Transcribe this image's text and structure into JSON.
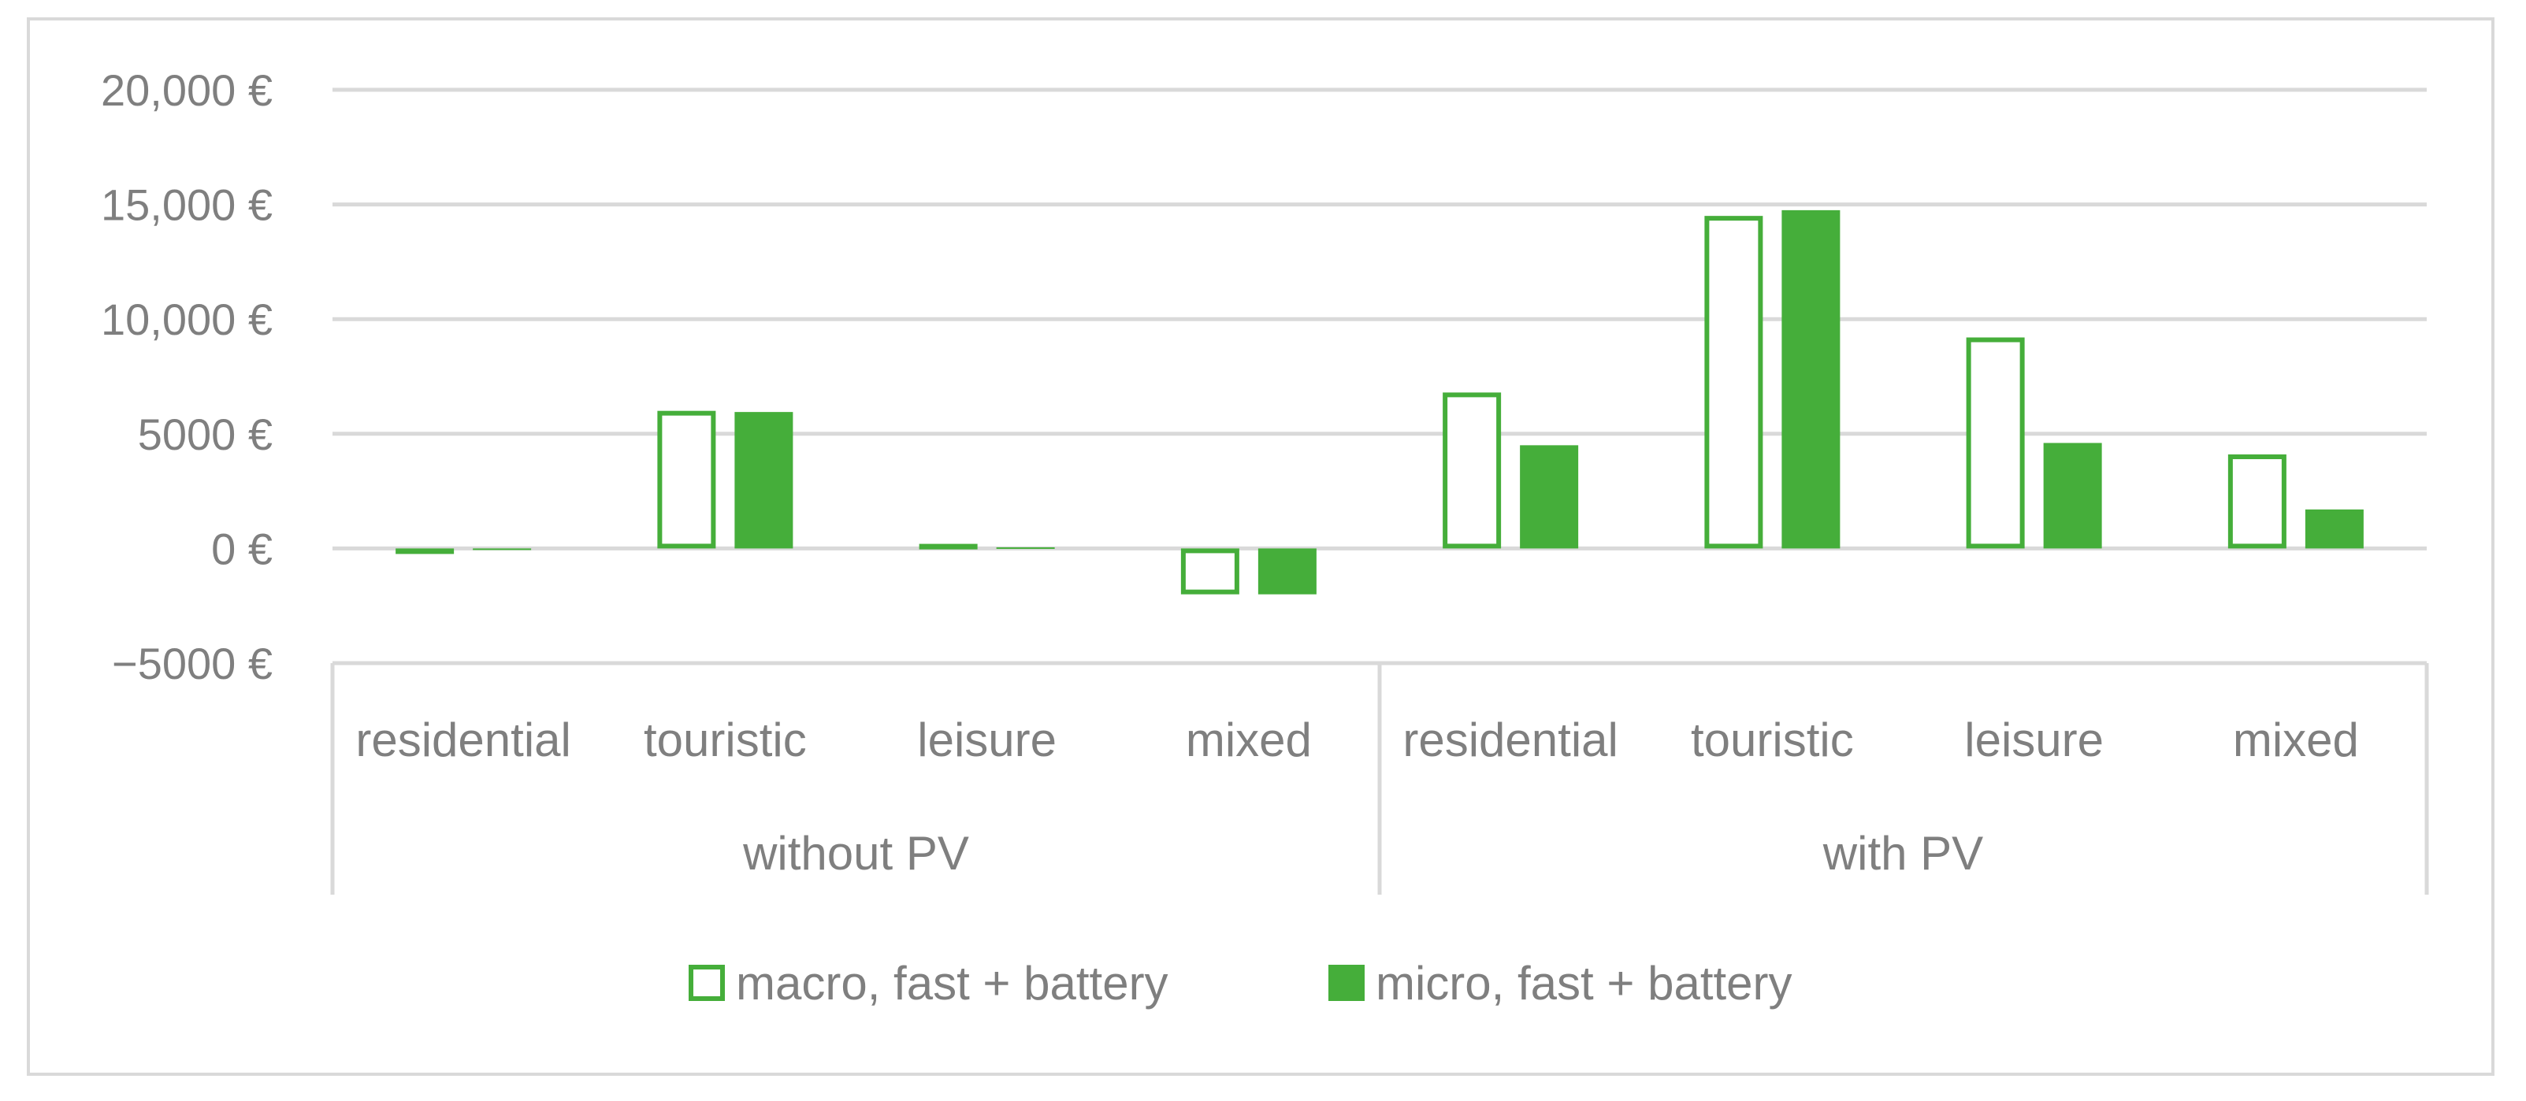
{
  "chart_data": {
    "type": "bar",
    "groups": [
      {
        "label": "without PV",
        "categories": [
          "residential",
          "touristic",
          "leisure",
          "mixed"
        ]
      },
      {
        "label": "with PV",
        "categories": [
          "residential",
          "touristic",
          "leisure",
          "mixed"
        ]
      }
    ],
    "categories": [
      "residential",
      "touristic",
      "leisure",
      "mixed",
      "residential",
      "touristic",
      "leisure",
      "mixed"
    ],
    "series": [
      {
        "name": "macro, fast + battery",
        "style": "outline",
        "color": "#45ae3a",
        "values": [
          -150,
          6000,
          200,
          -2000,
          6800,
          14500,
          9200,
          4100
        ]
      },
      {
        "name": "micro, fast + battery",
        "style": "filled",
        "color": "#45ae3a",
        "values": [
          0,
          5950,
          50,
          -2000,
          4500,
          14750,
          4600,
          1700
        ]
      }
    ],
    "y_ticks": [
      20000,
      15000,
      10000,
      5000,
      0,
      -5000
    ],
    "y_tick_labels": [
      "20,000 €",
      "15,000 €",
      "10,000 €",
      "5000 €",
      "0 €",
      "−5000 €"
    ],
    "ylim": [
      -5000,
      20000
    ],
    "grid": true,
    "legend_position": "bottom",
    "title": "",
    "xlabel": "",
    "ylabel": ""
  },
  "colors": {
    "grid": "#d9d9d9",
    "text": "#7f7f7f",
    "bar": "#45ae3a"
  }
}
